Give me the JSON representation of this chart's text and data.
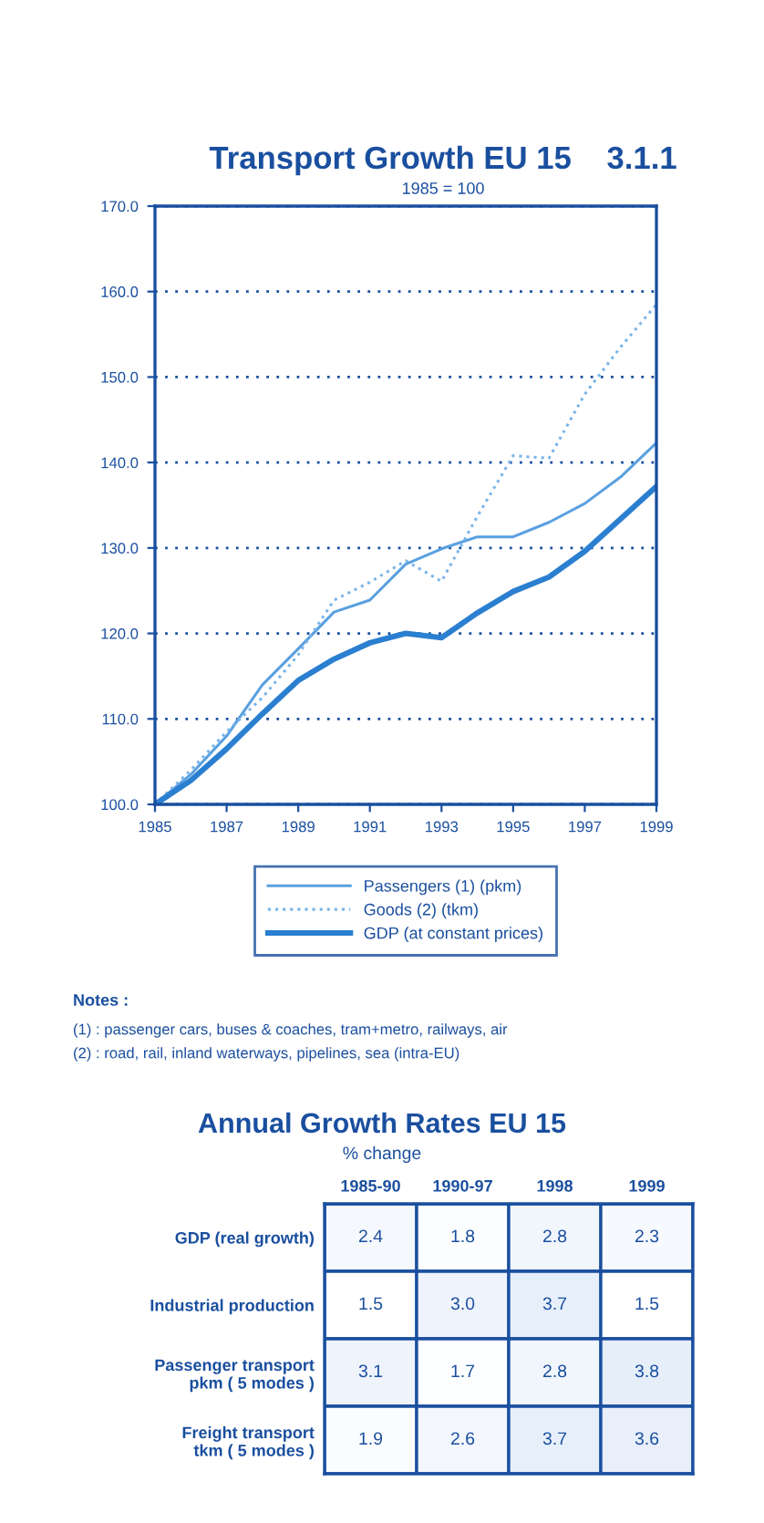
{
  "chart_data": [
    {
      "type": "line",
      "title": "Transport Growth EU 15    3.1.1",
      "subtitle": "1985 = 100",
      "x": [
        1985,
        1986,
        1987,
        1988,
        1989,
        1990,
        1991,
        1992,
        1993,
        1994,
        1995,
        1996,
        1997,
        1998,
        1999
      ],
      "series": [
        {
          "name": "Passengers (1) (pkm)",
          "color": "#5aa0e0",
          "line_style": "solid",
          "values": [
            100,
            103.5,
            108,
            114,
            118.2,
            122.5,
            123.9,
            128.1,
            129.9,
            131.3,
            131.3,
            133,
            135.2,
            138.3,
            142.3
          ]
        },
        {
          "name": "Goods (2) (tkm)",
          "color": "#7ab4e8",
          "line_style": "dotted",
          "values": [
            100,
            104,
            108.5,
            112.5,
            117.5,
            123.9,
            126,
            128.5,
            126.1,
            133.7,
            140.8,
            140.5,
            148,
            153.5,
            158.5
          ]
        },
        {
          "name": "GDP (at constant prices)",
          "color": "#2a7fd0",
          "line_style": "solid",
          "values": [
            100,
            102.8,
            106.5,
            110.6,
            114.5,
            117,
            118.9,
            120,
            119.5,
            122.4,
            124.9,
            126.6,
            129.6,
            133.4,
            137.2
          ]
        }
      ],
      "xlim": [
        1985,
        1999
      ],
      "xticks": [
        1985,
        1987,
        1989,
        1991,
        1993,
        1995,
        1997,
        1999
      ],
      "ylim": [
        100,
        170
      ],
      "yticks": [
        {
          "value": 100,
          "label": "100.0"
        },
        {
          "value": 110,
          "label": "110.0"
        },
        {
          "value": 120,
          "label": "120.0"
        },
        {
          "value": 130,
          "label": "130.0"
        },
        {
          "value": 140,
          "label": "140.0"
        },
        {
          "value": 150,
          "label": "150.0"
        },
        {
          "value": 160,
          "label": "160.0"
        },
        {
          "value": 170,
          "label": "170.0"
        }
      ],
      "grid": "y",
      "legend": "bottom",
      "marker": "none",
      "annotations": [
        "Notes :",
        "(1) : passenger cars, buses & coaches, tram+metro, railways, air",
        "(2) : road, rail, inland waterways, pipelines, sea (intra-EU)"
      ]
    },
    {
      "type": "heatmap",
      "title": "Annual Growth Rates EU 15",
      "subtitle": "% change",
      "categories": [
        "1985-90",
        "1990-97",
        "1998",
        "1999"
      ],
      "y_categories": [
        "GDP (real growth)",
        "Industrial production",
        "Passenger transport\npkm ( 5 modes )",
        "Freight transport\ntkm ( 5 modes )"
      ],
      "cells": [
        [
          2.4,
          1.8,
          2.8,
          2.3
        ],
        [
          1.5,
          3.0,
          3.7,
          1.5
        ],
        [
          3.1,
          1.7,
          2.8,
          3.8
        ],
        [
          1.9,
          2.6,
          3.7,
          3.6
        ]
      ],
      "cell_labels": [
        [
          "2.4",
          "1.8",
          "2.8",
          "2.3"
        ],
        [
          "1.5",
          "3.0",
          "3.7",
          "1.5"
        ],
        [
          "3.1",
          "1.7",
          "2.8",
          "3.8"
        ],
        [
          "1.9",
          "2.6",
          "3.7",
          "3.6"
        ]
      ],
      "data_labels": true
    }
  ]
}
